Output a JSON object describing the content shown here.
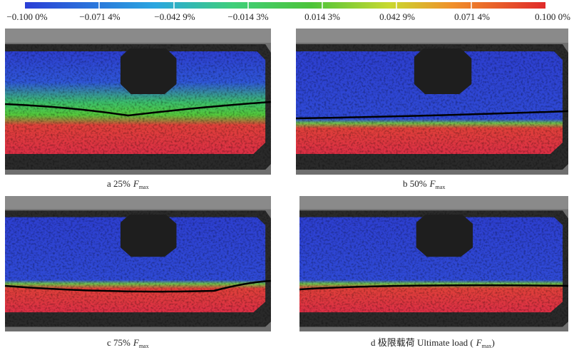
{
  "colorbar": {
    "labels": [
      "−0.100 0%",
      "−0.071 4%",
      "−0.042 9%",
      "−0.014 3%",
      "0.014 3%",
      "0.042 9%",
      "0.071 4%",
      "0.100 0%"
    ]
  },
  "panels": [
    {
      "caption": {
        "prefix": "a 25%",
        "variable": "F",
        "subscript": "max",
        "suffix": ""
      }
    },
    {
      "caption": {
        "prefix": "b 50%",
        "variable": "F",
        "subscript": "max",
        "suffix": ""
      }
    },
    {
      "caption": {
        "prefix": "c 75%",
        "variable": "F",
        "subscript": "max",
        "suffix": ""
      }
    },
    {
      "caption": {
        "prefix": "d 极限载荷 Ultimate load (",
        "variable": "F",
        "subscript": "max",
        "suffix": ")"
      }
    }
  ]
}
